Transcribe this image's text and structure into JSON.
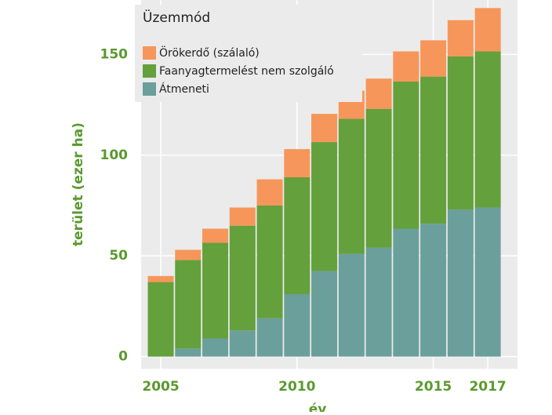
{
  "chart_data": {
    "type": "stacked_bar",
    "x_label": "év",
    "y_label": "terület (ezer ha)",
    "legend_title": "Üzemmód",
    "legend": "top-left",
    "x": [
      2005,
      2006,
      2007,
      2008,
      2009,
      2010,
      2011,
      2012,
      2013,
      2014,
      2015,
      2016,
      2017
    ],
    "series": [
      {
        "name": "Átmeneti",
        "color": "#6b9f9b",
        "values": [
          0,
          4,
          9,
          13,
          19,
          31,
          42.5,
          51,
          54,
          63.5,
          66,
          73,
          74
        ]
      },
      {
        "name": "Faanyagtermelést nem szolgáló",
        "color": "#64a03c",
        "values": [
          37,
          44,
          47.5,
          52,
          56,
          58,
          64,
          67,
          69,
          73,
          73,
          76,
          77.5
        ]
      },
      {
        "name": "Örökerdő (szálaló)",
        "color": "#f7965a",
        "values": [
          3,
          5,
          7,
          9,
          13,
          14,
          14,
          14,
          15,
          15,
          18,
          18,
          21.5
        ]
      }
    ],
    "xlim": [
      2004.28,
      2018.09
    ],
    "xticks": [
      2005,
      2010,
      2015,
      2017
    ],
    "ylim": [
      -6,
      177
    ],
    "yticks": [
      0,
      50,
      100,
      150
    ],
    "grid": true
  }
}
